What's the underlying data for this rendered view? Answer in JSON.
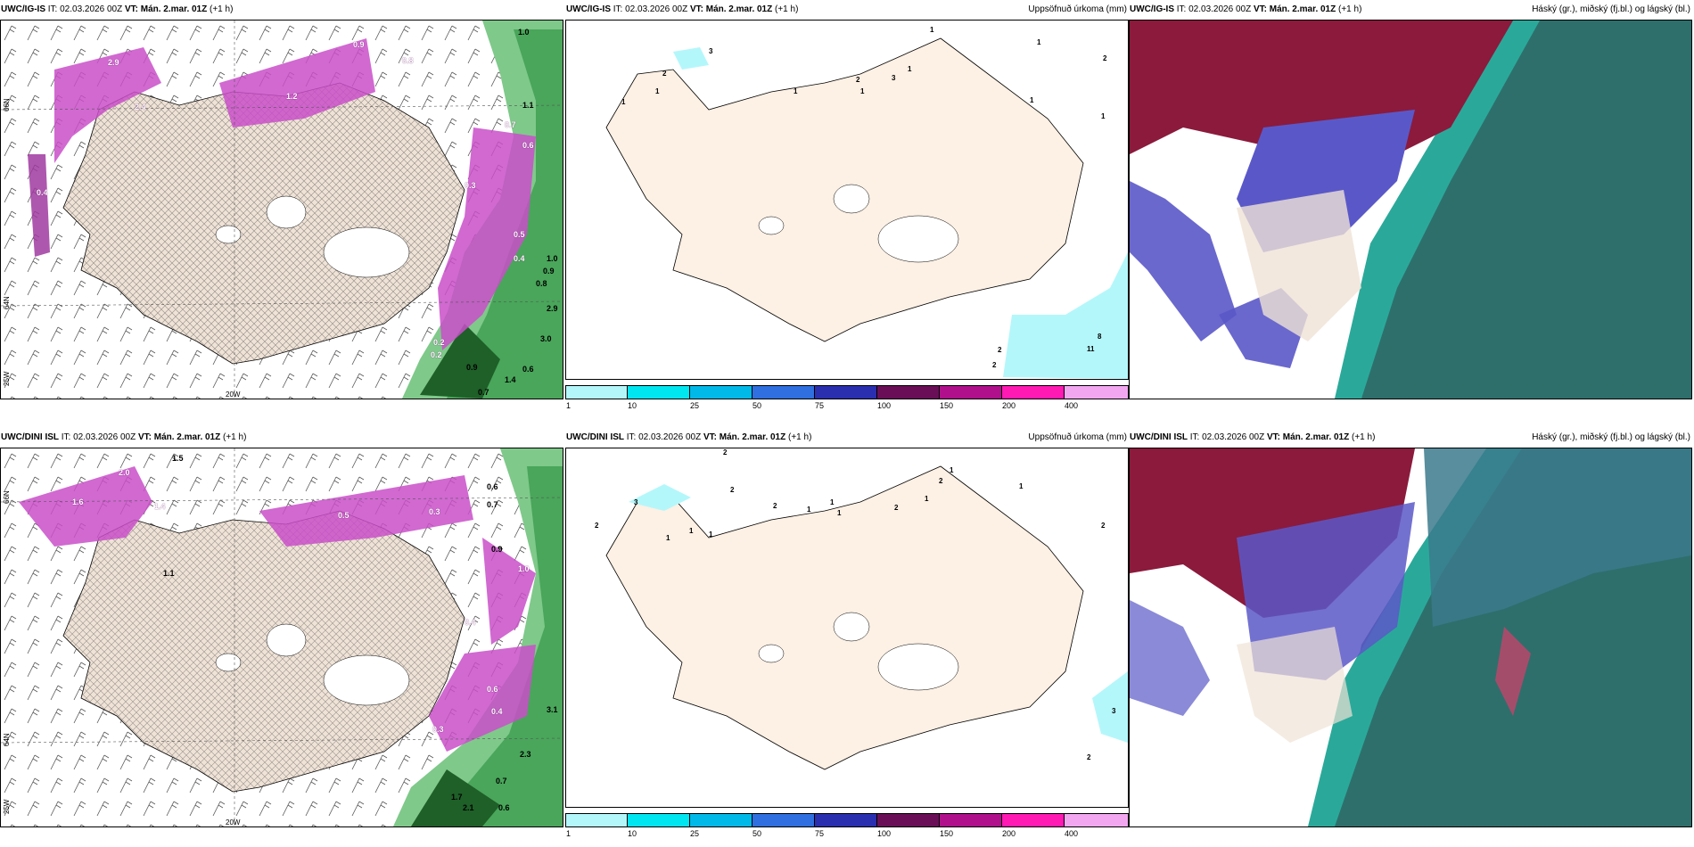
{
  "rows": [
    {
      "model": "UWC/IG-IS",
      "it_label": "IT:",
      "it_value": "02.03.2026 00Z",
      "vt_label": "VT:",
      "vt_value": "Mán. 2.mar. 01Z",
      "lead": "(+1 h)",
      "left_labels": [
        "1.0",
        "0.9",
        "0.8",
        "0.7",
        "0.6",
        "0.5",
        "0.4",
        "0.3",
        "0.2",
        "2.9",
        "2.4",
        "1.1",
        "1.2",
        "1.0",
        "0.9",
        "0.8",
        "2.9",
        "3.0",
        "0.6",
        "0.7",
        "1.4",
        "0.9",
        "0.2",
        "0.4"
      ],
      "precip_labels": [
        "3",
        "2",
        "1",
        "1",
        "1",
        "2",
        "1",
        "3",
        "1",
        "1",
        "1",
        "1",
        "2",
        "1",
        "2",
        "8",
        "11",
        "2"
      ],
      "lon_label": "20W",
      "lat_labels": [
        "66N",
        "64N",
        "25W"
      ]
    },
    {
      "model": "UWC/DINI ISL",
      "it_label": "IT:",
      "it_value": "02.03.2026 00Z",
      "vt_label": "VT:",
      "vt_value": "Mán. 2.mar. 01Z",
      "lead": "(+1 h)",
      "left_labels": [
        "1.5",
        "2.0",
        "1.6",
        "1.4",
        "1.1",
        "0.6",
        "0.7",
        "0.5",
        "0.4",
        "0.3",
        "1.0",
        "0.9",
        "0.6",
        "3.1",
        "2.3",
        "0.7",
        "0.6",
        "2.1",
        "1.7",
        "0.3",
        "0.4"
      ],
      "precip_labels": [
        "2",
        "3",
        "2",
        "1",
        "1",
        "2",
        "1",
        "2",
        "1",
        "1",
        "1",
        "2",
        "1",
        "2",
        "1",
        "1",
        "2",
        "3",
        "2"
      ],
      "lon_label": "20W",
      "lat_labels": [
        "66N",
        "64N",
        "25W"
      ]
    }
  ],
  "precip_title": "Uppsöfnuð úrkoma (mm)",
  "cloud_title": "Háský (gr.), miðský (fj.bl.) og lágský (bl.)",
  "colorbar": {
    "ticks": [
      "1",
      "10",
      "25",
      "50",
      "75",
      "100",
      "150",
      "200",
      "400"
    ],
    "colors": [
      "#b4f7fb",
      "#00e6f0",
      "#00b9e8",
      "#2f6fe0",
      "#2a2fb0",
      "#6a0f57",
      "#b0108c",
      "#ff1ab3",
      "#f2a6f0"
    ]
  },
  "colors": {
    "land": "#efe2d6",
    "land_precip": "#fdf0e4",
    "precip_magenta": "#c94fc9",
    "wind_green": "#2e8b3e",
    "cloud_high": "#8b1a3c",
    "cloud_mid": "#5a58c8",
    "cloud_low": "#2e6f6c",
    "cloud_teal": "#2aa99a"
  }
}
